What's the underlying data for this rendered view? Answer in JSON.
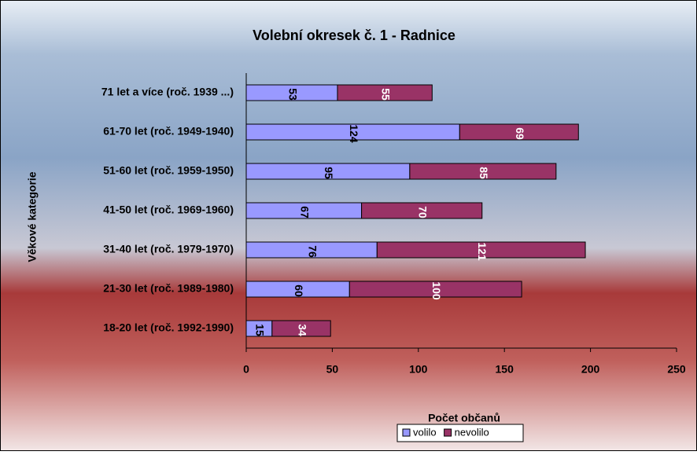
{
  "chart_data": {
    "type": "stacked-barh",
    "title": "Volební okresek č. 1 - Radnice",
    "xlabel": "Počet občanů",
    "ylabel": "Věkové kategorie",
    "categories": [
      "71 let a více (roč. 1939 ...)",
      "61-70 let (roč. 1949-1940)",
      "51-60 let (roč. 1959-1950)",
      "41-50 let (roč. 1969-1960)",
      "31-40 let (roč. 1979-1970)",
      "21-30 let (roč. 1989-1980)",
      "18-20 let (roč. 1992-1990)"
    ],
    "series": [
      {
        "name": "volilo",
        "color": "#9999ff",
        "values": [
          53,
          124,
          95,
          67,
          76,
          60,
          15
        ]
      },
      {
        "name": "nevolilo",
        "color": "#993366",
        "values": [
          55,
          69,
          85,
          70,
          121,
          100,
          34
        ]
      }
    ],
    "xlim": [
      0,
      250
    ],
    "xticks": [
      0,
      50,
      100,
      150,
      200,
      250
    ],
    "legend": "bottom"
  }
}
